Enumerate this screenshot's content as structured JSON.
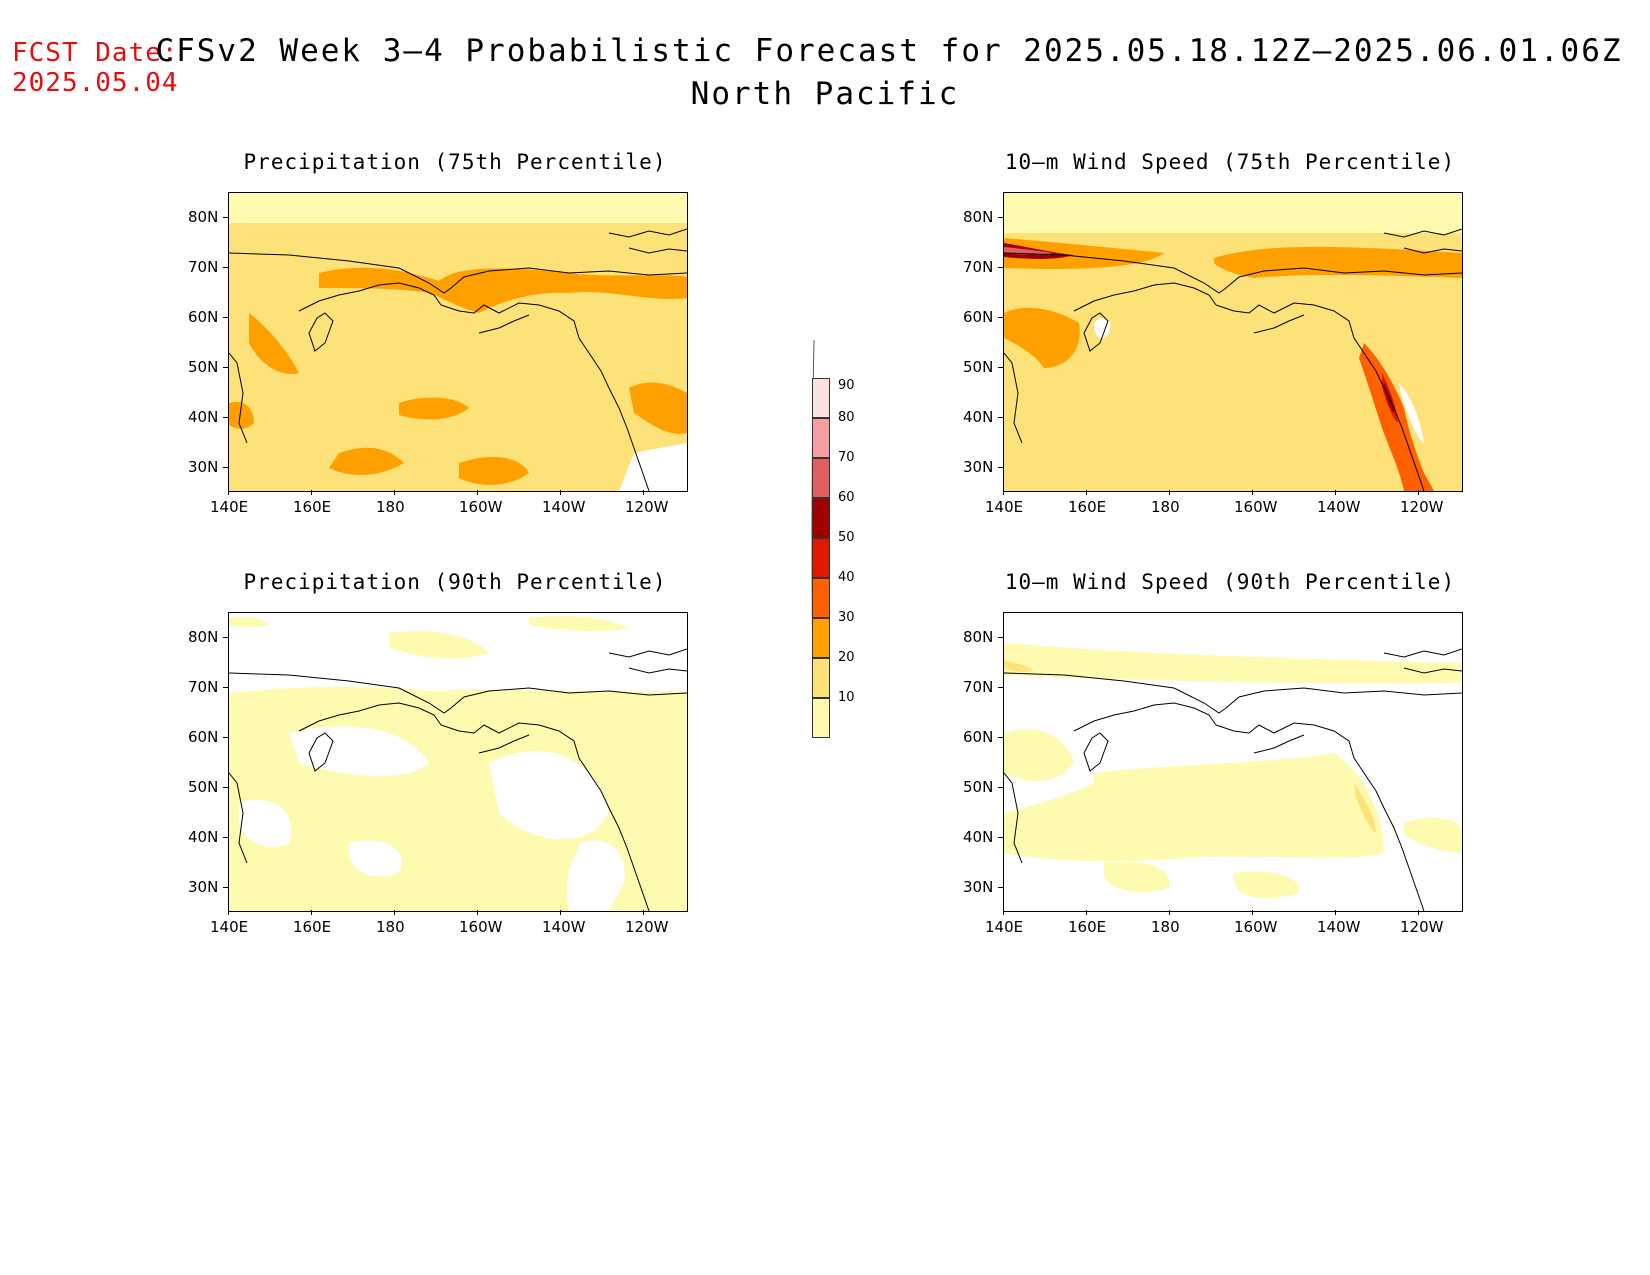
{
  "header": {
    "fcst_label": "FCST Date:",
    "fcst_date": "2025.05.04",
    "title": "CFSv2 Week 3–4 Probabilistic Forecast for 2025.05.18.12Z–2025.06.01.06Z",
    "region": "North Pacific"
  },
  "panels": [
    {
      "title": "Precipitation (75th Percentile)"
    },
    {
      "title": "10–m Wind Speed (75th Percentile)"
    },
    {
      "title": "Precipitation (90th Percentile)"
    },
    {
      "title": "10–m Wind Speed (90th Percentile)"
    }
  ],
  "axes": {
    "lat_labels": [
      "80N",
      "70N",
      "60N",
      "50N",
      "40N",
      "30N"
    ],
    "lon_labels": [
      "140E",
      "160E",
      "180",
      "160W",
      "140W",
      "120W"
    ]
  },
  "colorbar": {
    "levels": [
      "90",
      "80",
      "70",
      "60",
      "50",
      "40",
      "30",
      "20",
      "10"
    ],
    "colors": [
      "#fde0e0",
      "#f4a0a0",
      "#e06060",
      "#a00000",
      "#e01800",
      "#ff6000",
      "#ffa000",
      "#fde27a",
      "#fefab0"
    ]
  }
}
